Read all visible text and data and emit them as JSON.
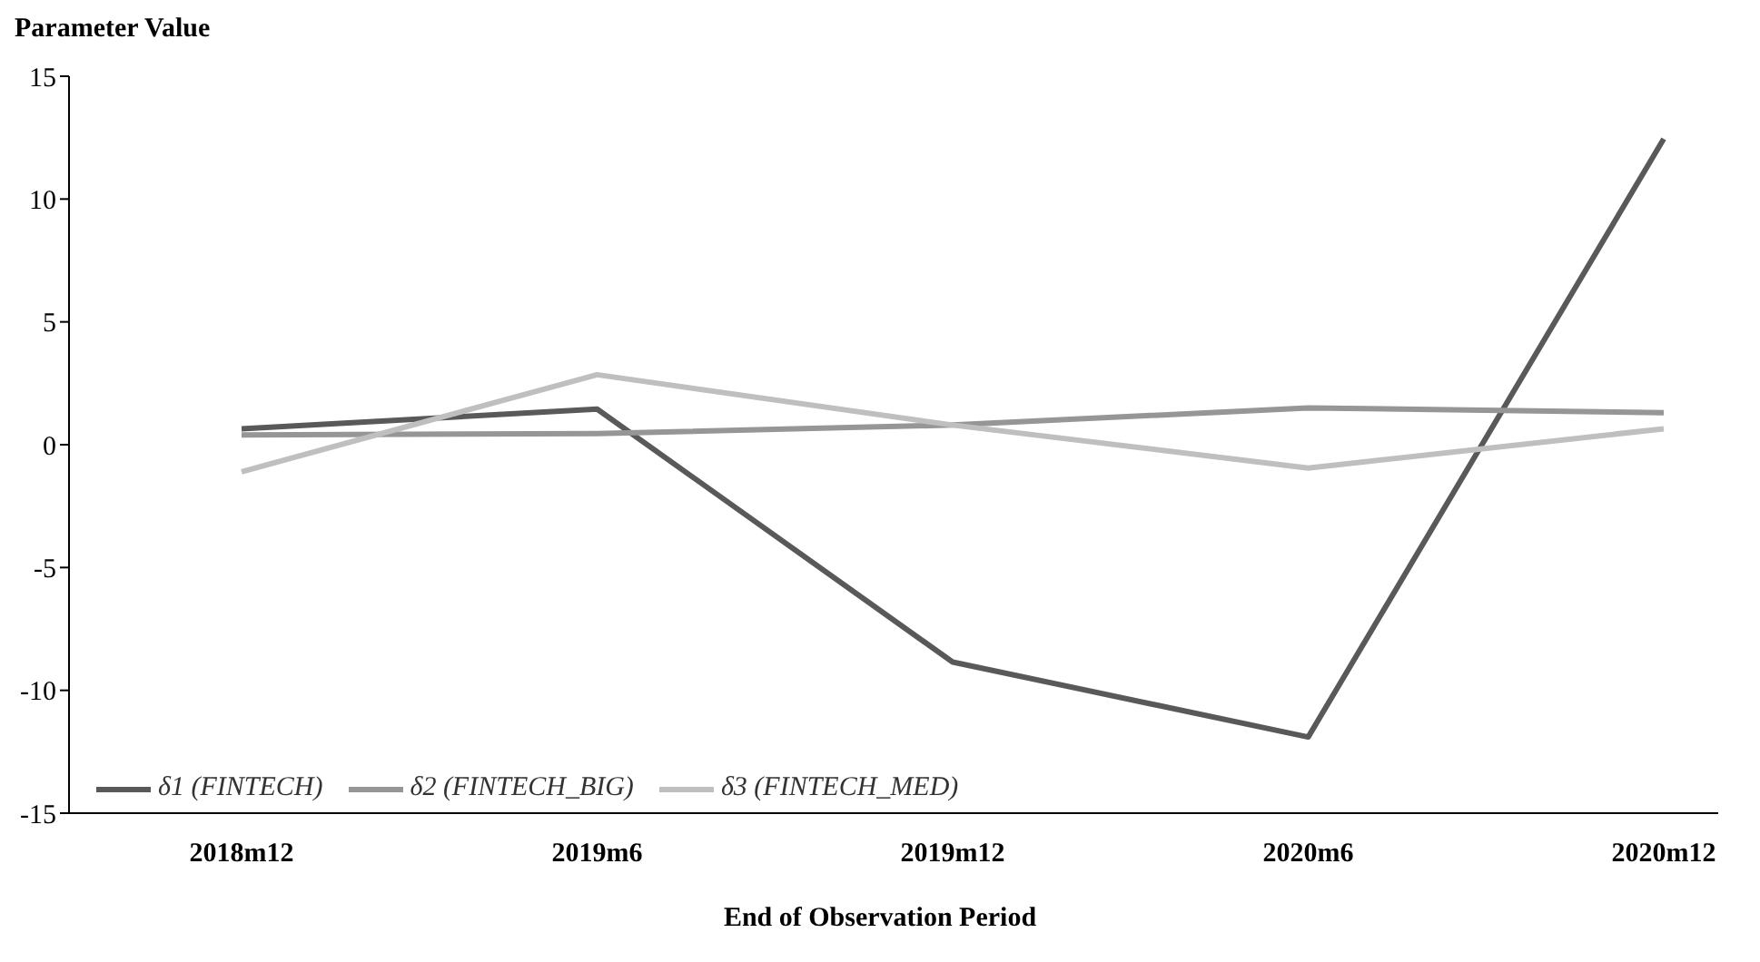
{
  "chart_data": {
    "type": "line",
    "xlabel": "End of Observation Period",
    "ylabel": "Parameter Value",
    "categories": [
      "2018m12",
      "2019m6",
      "2019m12",
      "2020m6",
      "2020m12"
    ],
    "series": [
      {
        "name": "δ1 (FINTECH)",
        "color": "#595959",
        "values": [
          0.65,
          1.45,
          -8.85,
          -11.9,
          12.45
        ]
      },
      {
        "name": "δ2 (FINTECH_BIG)",
        "color": "#969696",
        "values": [
          0.4,
          0.45,
          0.8,
          1.5,
          1.3
        ]
      },
      {
        "name": "δ3 (FINTECH_MED)",
        "color": "#bfbfbf",
        "values": [
          -1.1,
          2.85,
          0.8,
          -0.95,
          0.65
        ]
      }
    ],
    "ylim": [
      -15,
      15
    ],
    "yticks": [
      -15,
      -10,
      -5,
      0,
      5,
      10,
      15
    ],
    "grid": false,
    "legend": "bottom left",
    "marker": "none",
    "line_style": "solid"
  }
}
